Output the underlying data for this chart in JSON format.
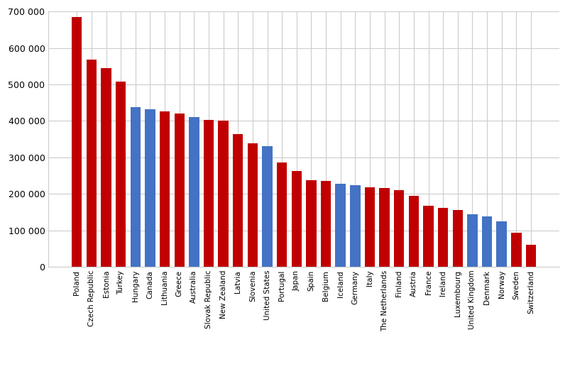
{
  "categories": [
    "Poland",
    "Czech Republic",
    "Estonia",
    "Turkey",
    "Hungary",
    "Canada",
    "Lithuania",
    "Greece",
    "Australia",
    "Slovak Republic",
    "New Zealand",
    "Latvia",
    "Slovenia",
    "United States",
    "Portugal",
    "Japan",
    "Spain",
    "Belgium",
    "Iceland",
    "Germany",
    "Italy",
    "The Netherlands",
    "Finland",
    "Austria",
    "France",
    "Ireland",
    "Luxembourg",
    "United Kingdom",
    "Denmark",
    "Norway",
    "Sweden",
    "Switzerland"
  ],
  "values": [
    685000,
    567000,
    544000,
    508000,
    438000,
    432000,
    425000,
    421000,
    410000,
    402000,
    401000,
    363000,
    339000,
    330000,
    286000,
    263000,
    238000,
    236000,
    228000,
    224000,
    218000,
    215000,
    209000,
    194000,
    167000,
    161000,
    155000,
    143000,
    137000,
    124000,
    93000,
    61000
  ],
  "colors": [
    "#c00000",
    "#c00000",
    "#c00000",
    "#c00000",
    "#4472c4",
    "#4472c4",
    "#c00000",
    "#c00000",
    "#4472c4",
    "#c00000",
    "#c00000",
    "#c00000",
    "#c00000",
    "#4472c4",
    "#c00000",
    "#c00000",
    "#c00000",
    "#c00000",
    "#4472c4",
    "#4472c4",
    "#c00000",
    "#c00000",
    "#c00000",
    "#c00000",
    "#c00000",
    "#c00000",
    "#c00000",
    "#4472c4",
    "#4472c4",
    "#4472c4",
    "#c00000",
    "#c00000"
  ],
  "ylim": [
    0,
    700000
  ],
  "yticks": [
    0,
    100000,
    200000,
    300000,
    400000,
    500000,
    600000,
    700000
  ],
  "figsize": [
    8.04,
    5.37
  ],
  "dpi": 100,
  "bar_width": 0.7,
  "xtick_fontsize": 7.5,
  "ytick_fontsize": 9,
  "background_color": "#ffffff",
  "grid_color": "#cccccc"
}
